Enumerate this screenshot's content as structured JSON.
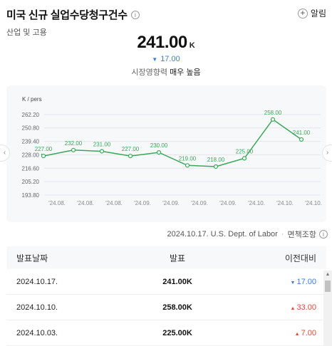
{
  "header": {
    "title": "미국 신규 실업수당청구건수",
    "info_icon": "i",
    "category": "산업 및 고용",
    "alert_label": "알림",
    "alert_icon": "+"
  },
  "summary": {
    "value": "241.00",
    "unit": "K",
    "change_arrow": "▼",
    "change": "17.00",
    "impact_label": "시장영향력",
    "impact_value": "매우 높음"
  },
  "chart_data": {
    "type": "line",
    "unit_label": "K / pers",
    "y_ticks": [
      193.8,
      205.2,
      216.6,
      228.0,
      239.4,
      250.8,
      262.2
    ],
    "ylim": [
      193.8,
      273.6
    ],
    "x": [
      "'24.08.",
      "'24.08.",
      "'24.08.",
      "'24.09.",
      "'24.09.",
      "'24.09.",
      "'24.09.",
      "'24.10.",
      "'24.10.",
      "'24.10."
    ],
    "series": [
      {
        "values": [
          227.0,
          232.0,
          231.0,
          227.0,
          230.0,
          219.0,
          218.0,
          225.0,
          258.0,
          241.0
        ],
        "labels": [
          "227.00",
          "232.00",
          "231.00",
          "227.00",
          "230.00",
          "219.00",
          "218.00",
          "225.00",
          "258.00",
          "241.00"
        ],
        "color": "#3aa757"
      }
    ],
    "grid": true,
    "legend": "none"
  },
  "chart_nav": {
    "left": "‹",
    "right": "›"
  },
  "source": {
    "date_source": "2024.10.17. U.S. Dept. of Labor",
    "separator": "·",
    "disclaimer": "면책조항",
    "info_icon": "i"
  },
  "table": {
    "headers": {
      "date": "발표날짜",
      "release": "발표",
      "change": "이전대비"
    },
    "rows": [
      {
        "date": "2024.10.17.",
        "release": "241.00K",
        "dir": "down",
        "arrow": "▼",
        "change": "17.00"
      },
      {
        "date": "2024.10.10.",
        "release": "258.00K",
        "dir": "up",
        "arrow": "▲",
        "change": "33.00"
      },
      {
        "date": "2024.10.03.",
        "release": "225.00K",
        "dir": "up",
        "arrow": "▲",
        "change": "7.00"
      }
    ]
  },
  "scrollbar": {
    "up": "▲",
    "down": "▼"
  },
  "colors": {
    "accent_line": "#3aa757",
    "down": "#3a7be0",
    "up": "#e0473a"
  }
}
